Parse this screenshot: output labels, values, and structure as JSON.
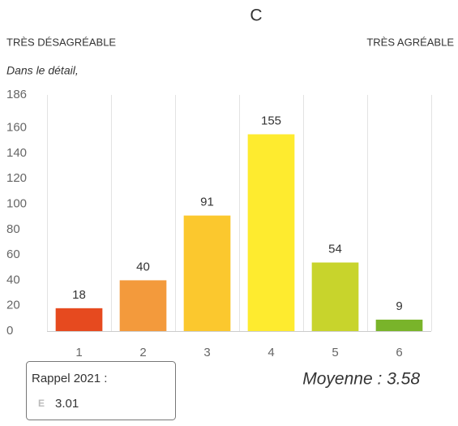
{
  "chart_data": {
    "type": "bar",
    "title": "C",
    "scale_left": "TRÈS DÉSAGRÉABLE",
    "scale_right": "TRÈS AGRÉABLE",
    "subtitle": "Dans le détail,",
    "categories": [
      "1",
      "2",
      "3",
      "4",
      "5",
      "6"
    ],
    "values": [
      18,
      40,
      91,
      155,
      54,
      9
    ],
    "colors": [
      "#e64a1f",
      "#f39a3c",
      "#fbc82e",
      "#feeb2f",
      "#c8d42c",
      "#79b42a"
    ],
    "ylim": [
      0,
      186
    ],
    "yticks": [
      0,
      20,
      40,
      60,
      80,
      100,
      120,
      140,
      160,
      186
    ],
    "grid": true,
    "recall": {
      "label": "Rappel 2021 :",
      "grade": "E",
      "value": 3.01
    },
    "average": "Moyenne : 3.58"
  }
}
